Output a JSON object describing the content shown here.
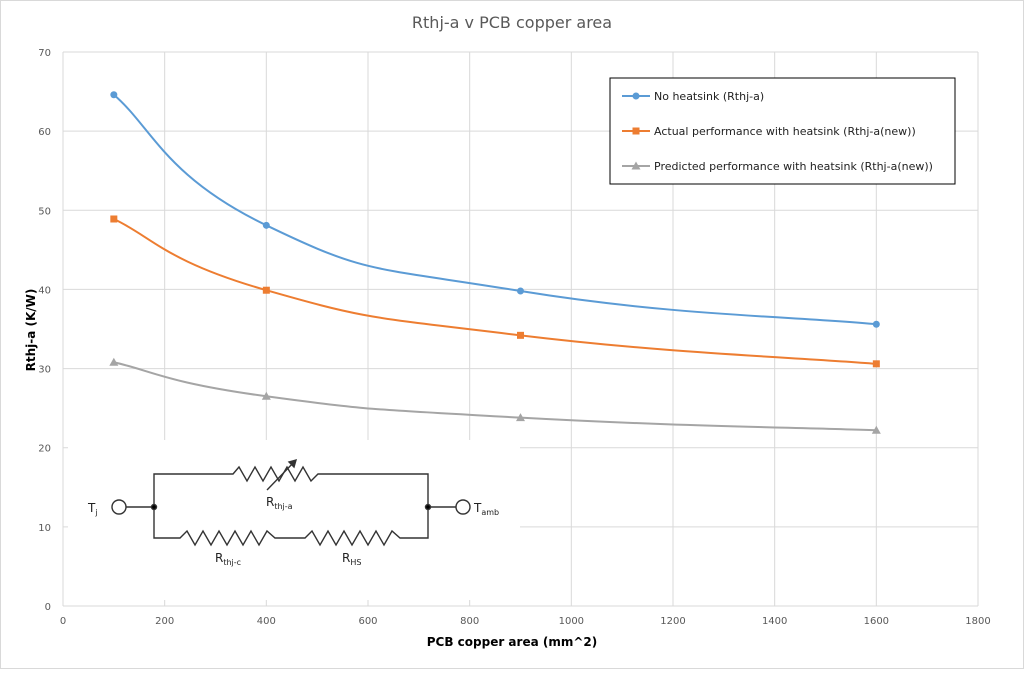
{
  "chart_data": {
    "type": "line",
    "title": "Rthj-a v PCB copper area",
    "xlabel": "PCB copper area (mm^2)",
    "ylabel": "Rthj-a (K/W)",
    "xlim": [
      0,
      1800
    ],
    "ylim": [
      0,
      70
    ],
    "xticks": [
      0,
      200,
      400,
      600,
      800,
      1000,
      1200,
      1400,
      1600,
      1800
    ],
    "yticks": [
      0,
      10,
      20,
      30,
      40,
      50,
      60,
      70
    ],
    "grid": true,
    "smooth": true,
    "legend_position": "top-right",
    "x": [
      100,
      400,
      900,
      1600
    ],
    "series": [
      {
        "name": "No heatsink (Rthj-a)",
        "values": [
          64.6,
          48.1,
          39.8,
          35.6
        ],
        "color": "#5b9bd5",
        "marker": "circle"
      },
      {
        "name": "Actual performance with heatsink (Rthj-a(new))",
        "values": [
          48.9,
          39.9,
          34.2,
          30.6
        ],
        "color": "#ed7d31",
        "marker": "square"
      },
      {
        "name": "Predicted performance with heatsink (Rthj-a(new))",
        "values": [
          30.8,
          26.5,
          23.8,
          22.2
        ],
        "color": "#a5a5a5",
        "marker": "triangle"
      }
    ]
  },
  "circuit": {
    "left_node": "T",
    "left_node_sub": "j",
    "right_node": "T",
    "right_node_sub": "amb",
    "variable_resistor": "R",
    "variable_resistor_sub": "thj-a",
    "resistor1": "R",
    "resistor1_sub": "thj-c",
    "resistor2": "R",
    "resistor2_sub": "HS"
  }
}
